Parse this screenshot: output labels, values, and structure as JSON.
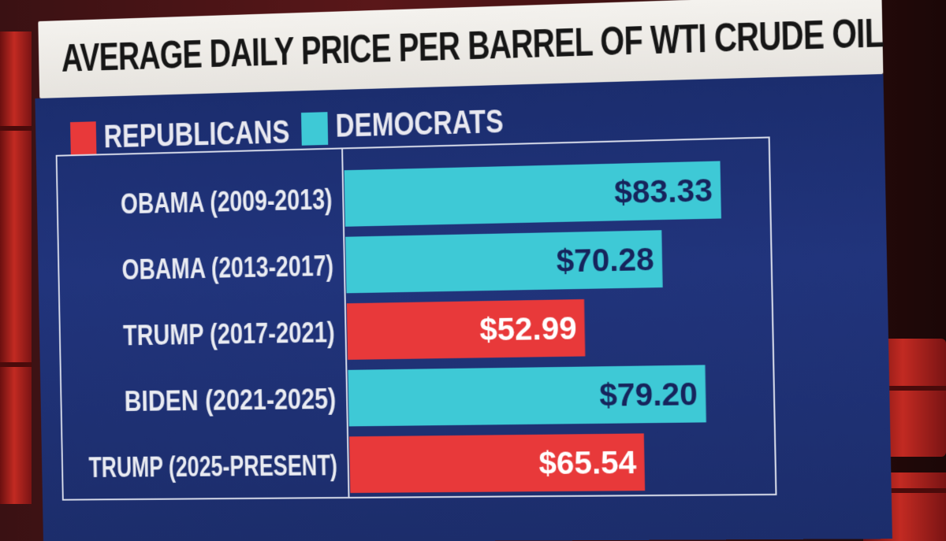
{
  "chart_data": {
    "type": "bar",
    "orientation": "horizontal",
    "title": "AVERAGE DAILY PRICE PER BARREL OF WTI CRUDE OIL",
    "legend": [
      {
        "name": "REPUBLICANS",
        "color": "#e8393a"
      },
      {
        "name": "DEMOCRATS",
        "color": "#3ec9d6"
      }
    ],
    "legend_position": "top-left",
    "categories": [
      "OBAMA (2009-2013)",
      "OBAMA (2013-2017)",
      "TRUMP (2017-2021)",
      "BIDEN (2021-2025)",
      "TRUMP (2025-PRESENT)"
    ],
    "values": [
      83.33,
      70.28,
      52.99,
      79.2,
      65.54
    ],
    "value_labels": [
      "$83.33",
      "$70.28",
      "$52.99",
      "$79.20",
      "$65.54"
    ],
    "party": [
      "DEMOCRATS",
      "DEMOCRATS",
      "REPUBLICANS",
      "DEMOCRATS",
      "REPUBLICANS"
    ],
    "xlim": [
      0,
      90
    ],
    "grid": false
  }
}
